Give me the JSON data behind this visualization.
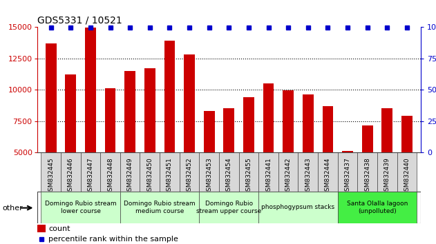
{
  "title": "GDS5331 / 10521",
  "samples": [
    "GSM832445",
    "GSM832446",
    "GSM832447",
    "GSM832448",
    "GSM832449",
    "GSM832450",
    "GSM832451",
    "GSM832452",
    "GSM832453",
    "GSM832454",
    "GSM832455",
    "GSM832441",
    "GSM832442",
    "GSM832443",
    "GSM832444",
    "GSM832437",
    "GSM832438",
    "GSM832439",
    "GSM832440"
  ],
  "counts": [
    13700,
    11200,
    14950,
    10100,
    11500,
    11700,
    13900,
    12800,
    8300,
    8500,
    9400,
    10500,
    9950,
    9600,
    8700,
    5100,
    7150,
    8500,
    7900
  ],
  "percentiles": [
    100,
    100,
    100,
    100,
    100,
    100,
    100,
    100,
    100,
    100,
    100,
    100,
    100,
    100,
    100,
    100,
    100,
    100,
    100
  ],
  "bar_color": "#cc0000",
  "dot_color": "#0000cc",
  "ylim_left": [
    5000,
    15000
  ],
  "ylim_right": [
    0,
    100
  ],
  "yticks_left": [
    5000,
    7500,
    10000,
    12500,
    15000
  ],
  "yticks_right": [
    0,
    25,
    50,
    75,
    100
  ],
  "groups": [
    {
      "label": "Domingo Rubio stream\nlower course",
      "start": 0,
      "end": 3,
      "color": "#ccffcc"
    },
    {
      "label": "Domingo Rubio stream\nmedium course",
      "start": 4,
      "end": 7,
      "color": "#ccffcc"
    },
    {
      "label": "Domingo Rubio\nstream upper course",
      "start": 8,
      "end": 10,
      "color": "#ccffcc"
    },
    {
      "label": "phosphogypsum stacks",
      "start": 11,
      "end": 14,
      "color": "#ccffcc"
    },
    {
      "label": "Santa Olalla lagoon\n(unpolluted)",
      "start": 15,
      "end": 18,
      "color": "#44ee44"
    }
  ],
  "other_label": "other",
  "legend_count_label": "count",
  "legend_pct_label": "percentile rank within the sample",
  "bar_color_legend": "#cc0000",
  "dot_color_legend": "#0000cc",
  "title_fontsize": 10,
  "tick_label_fontsize": 6.5,
  "group_label_fontsize": 6.5,
  "legend_fontsize": 8,
  "bar_width": 0.55,
  "xlim": [
    -0.7,
    18.7
  ],
  "xticklabel_bg": "#d8d8d8",
  "group_border_color": "#888888",
  "grid_color": "#000000",
  "separator_color": "#444444"
}
